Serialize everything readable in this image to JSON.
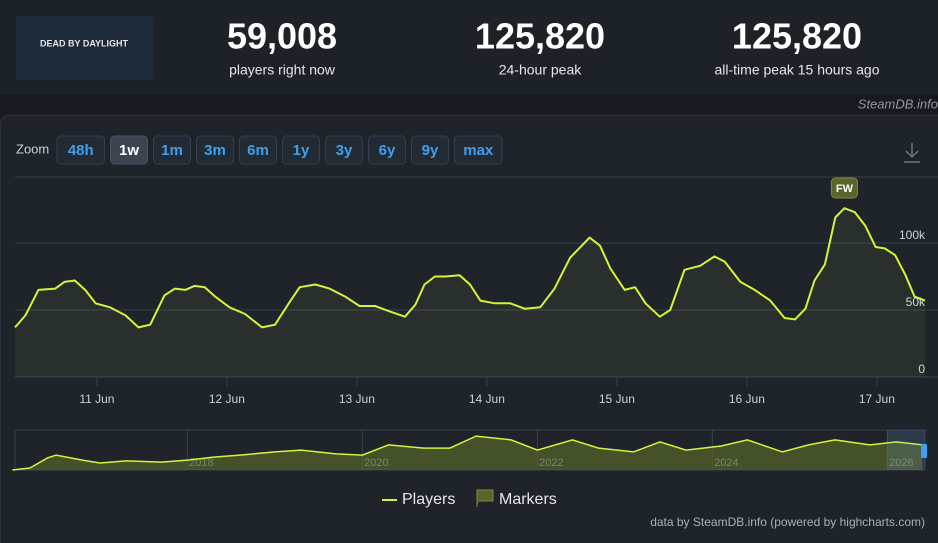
{
  "header": {
    "game_logo": "DEAD BY DAYLIGHT",
    "stats": [
      {
        "value": "59,008",
        "label": "players right now"
      },
      {
        "value": "125,820",
        "label": "24-hour peak"
      },
      {
        "value": "125,820",
        "label": "all-time peak 15 hours ago"
      }
    ],
    "source": "SteamDB.info"
  },
  "zoom": {
    "label": "Zoom",
    "options": [
      "48h",
      "1w",
      "1m",
      "3m",
      "6m",
      "1y",
      "3y",
      "6y",
      "9y",
      "max"
    ],
    "selected": "1w"
  },
  "credits": "data by SteamDB.info (powered by highcharts.com)",
  "chart_data": [
    {
      "type": "line",
      "x": [
        10.37,
        10.45,
        10.55,
        10.68,
        10.75,
        10.83,
        10.91,
        10.99,
        11.1,
        11.22,
        11.32,
        11.41,
        11.52,
        11.6,
        11.68,
        11.75,
        11.83,
        11.91,
        12.02,
        12.14,
        12.27,
        12.37,
        12.49,
        12.56,
        12.68,
        12.79,
        12.91,
        13.02,
        13.14,
        13.25,
        13.37,
        13.45,
        13.52,
        13.6,
        13.68,
        13.79,
        13.87,
        13.95,
        14.06,
        14.18,
        14.29,
        14.41,
        14.52,
        14.64,
        14.72,
        14.79,
        14.87,
        14.95,
        15.06,
        15.14,
        15.22,
        15.33,
        15.41,
        15.52,
        15.64,
        15.75,
        15.83,
        15.95,
        16.06,
        16.18,
        16.29,
        16.37,
        16.45,
        16.52,
        16.6,
        16.68,
        16.75,
        16.83,
        16.91,
        16.99,
        17.06,
        17.14,
        17.22,
        17.29,
        17.37
      ],
      "series": [
        {
          "name": "Players",
          "color": "#d2f53c",
          "values": [
            37000,
            46000,
            65000,
            66000,
            71000,
            72000,
            65000,
            55000,
            52000,
            46000,
            37000,
            39000,
            61000,
            66000,
            65000,
            68000,
            67000,
            60000,
            52000,
            47000,
            37000,
            39000,
            57000,
            67000,
            69000,
            66000,
            60000,
            53000,
            53000,
            49000,
            45000,
            54000,
            69000,
            75000,
            75000,
            76000,
            69000,
            57000,
            55000,
            55000,
            51000,
            52000,
            66000,
            89000,
            97000,
            104000,
            98000,
            81000,
            65000,
            67000,
            55000,
            45000,
            50000,
            80000,
            83000,
            90000,
            86000,
            71000,
            65000,
            57000,
            44000,
            43000,
            51000,
            72000,
            84000,
            119000,
            126000,
            123000,
            113000,
            97000,
            96000,
            91000,
            76000,
            60000,
            57000
          ]
        }
      ],
      "xlim": [
        10.37,
        17.37
      ],
      "xticks": [
        {
          "value": 11,
          "label": "11 Jun"
        },
        {
          "value": 12,
          "label": "12 Jun"
        },
        {
          "value": 13,
          "label": "13 Jun"
        },
        {
          "value": 14,
          "label": "14 Jun"
        },
        {
          "value": 15,
          "label": "15 Jun"
        },
        {
          "value": 16,
          "label": "16 Jun"
        },
        {
          "value": 17,
          "label": "17 Jun"
        }
      ],
      "ylim": [
        0,
        150000
      ],
      "yticks": [
        0,
        {
          "value": 50000,
          "label": "50k"
        },
        {
          "value": 100000,
          "label": "100k"
        }
      ],
      "grid": true,
      "annotations": [
        {
          "label": "FW",
          "x": 16.75
        }
      ],
      "marker_legend": {
        "name": "Markers",
        "color": "#56652a"
      },
      "legend": "bottom"
    },
    {
      "type": "area",
      "x": [
        2016.0,
        2016.2,
        2016.4,
        2016.5,
        2016.8,
        2017.0,
        2017.3,
        2017.7,
        2018.0,
        2018.3,
        2018.6,
        2019.0,
        2019.3,
        2019.7,
        2020.0,
        2020.3,
        2020.7,
        2021.0,
        2021.3,
        2021.7,
        2022.0,
        2022.4,
        2022.7,
        2023.1,
        2023.4,
        2023.7,
        2024.1,
        2024.4,
        2024.8,
        2025.1,
        2025.4,
        2025.8,
        2026.1,
        2026.4
      ],
      "values": [
        0,
        7000,
        41000,
        51000,
        34000,
        24000,
        31000,
        27000,
        34000,
        44000,
        51000,
        62000,
        68000,
        55000,
        51000,
        86000,
        75000,
        75000,
        116000,
        103000,
        68000,
        103000,
        75000,
        62000,
        96000,
        68000,
        82000,
        103000,
        62000,
        86000,
        103000,
        86000,
        96000,
        86000
      ],
      "color": "#d2f53c",
      "xlim": [
        2016.03,
        2026.43
      ],
      "xticks": [
        2018,
        2020,
        2022,
        2024,
        2026
      ],
      "ylim": [
        0,
        130000
      ]
    }
  ]
}
